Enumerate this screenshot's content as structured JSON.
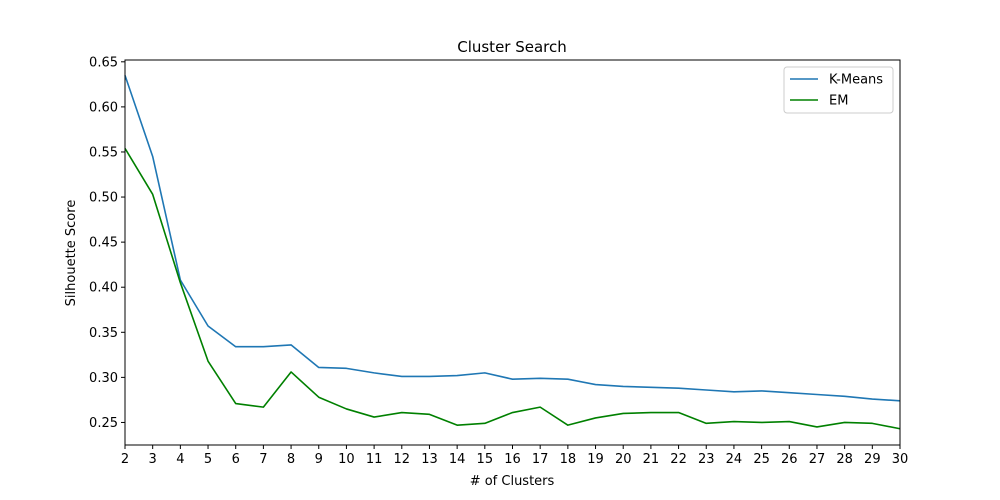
{
  "chart_data": {
    "type": "line",
    "title": "Cluster Search",
    "xlabel": "# of Clusters",
    "ylabel": "Silhouette Score",
    "x": [
      2,
      3,
      4,
      5,
      6,
      7,
      8,
      9,
      10,
      11,
      12,
      13,
      14,
      15,
      16,
      17,
      18,
      19,
      20,
      21,
      22,
      23,
      24,
      25,
      26,
      27,
      28,
      29,
      30
    ],
    "xlim": [
      2,
      30
    ],
    "ylim": [
      0.225,
      0.652
    ],
    "xticks": [
      "2",
      "3",
      "4",
      "5",
      "6",
      "7",
      "8",
      "9",
      "10",
      "11",
      "12",
      "13",
      "14",
      "15",
      "16",
      "17",
      "18",
      "19",
      "20",
      "21",
      "22",
      "23",
      "24",
      "25",
      "26",
      "27",
      "28",
      "29",
      "30"
    ],
    "yticks": [
      "0.25",
      "0.30",
      "0.35",
      "0.40",
      "0.45",
      "0.50",
      "0.55",
      "0.60",
      "0.65"
    ],
    "grid": false,
    "legend_position": "top-right",
    "series": [
      {
        "name": "K-Means",
        "color": "#1f77b4",
        "values": [
          0.635,
          0.545,
          0.408,
          0.357,
          0.334,
          0.334,
          0.336,
          0.311,
          0.31,
          0.305,
          0.301,
          0.301,
          0.302,
          0.305,
          0.298,
          0.299,
          0.298,
          0.292,
          0.29,
          0.289,
          0.288,
          0.286,
          0.284,
          0.285,
          0.283,
          0.281,
          0.279,
          0.276,
          0.274
        ]
      },
      {
        "name": "EM",
        "color": "#008000",
        "values": [
          0.554,
          0.503,
          0.405,
          0.318,
          0.271,
          0.267,
          0.306,
          0.278,
          0.265,
          0.256,
          0.261,
          0.259,
          0.247,
          0.249,
          0.261,
          0.267,
          0.247,
          0.255,
          0.26,
          0.261,
          0.261,
          0.249,
          0.251,
          0.25,
          0.251,
          0.245,
          0.25,
          0.249,
          0.243
        ]
      }
    ]
  }
}
